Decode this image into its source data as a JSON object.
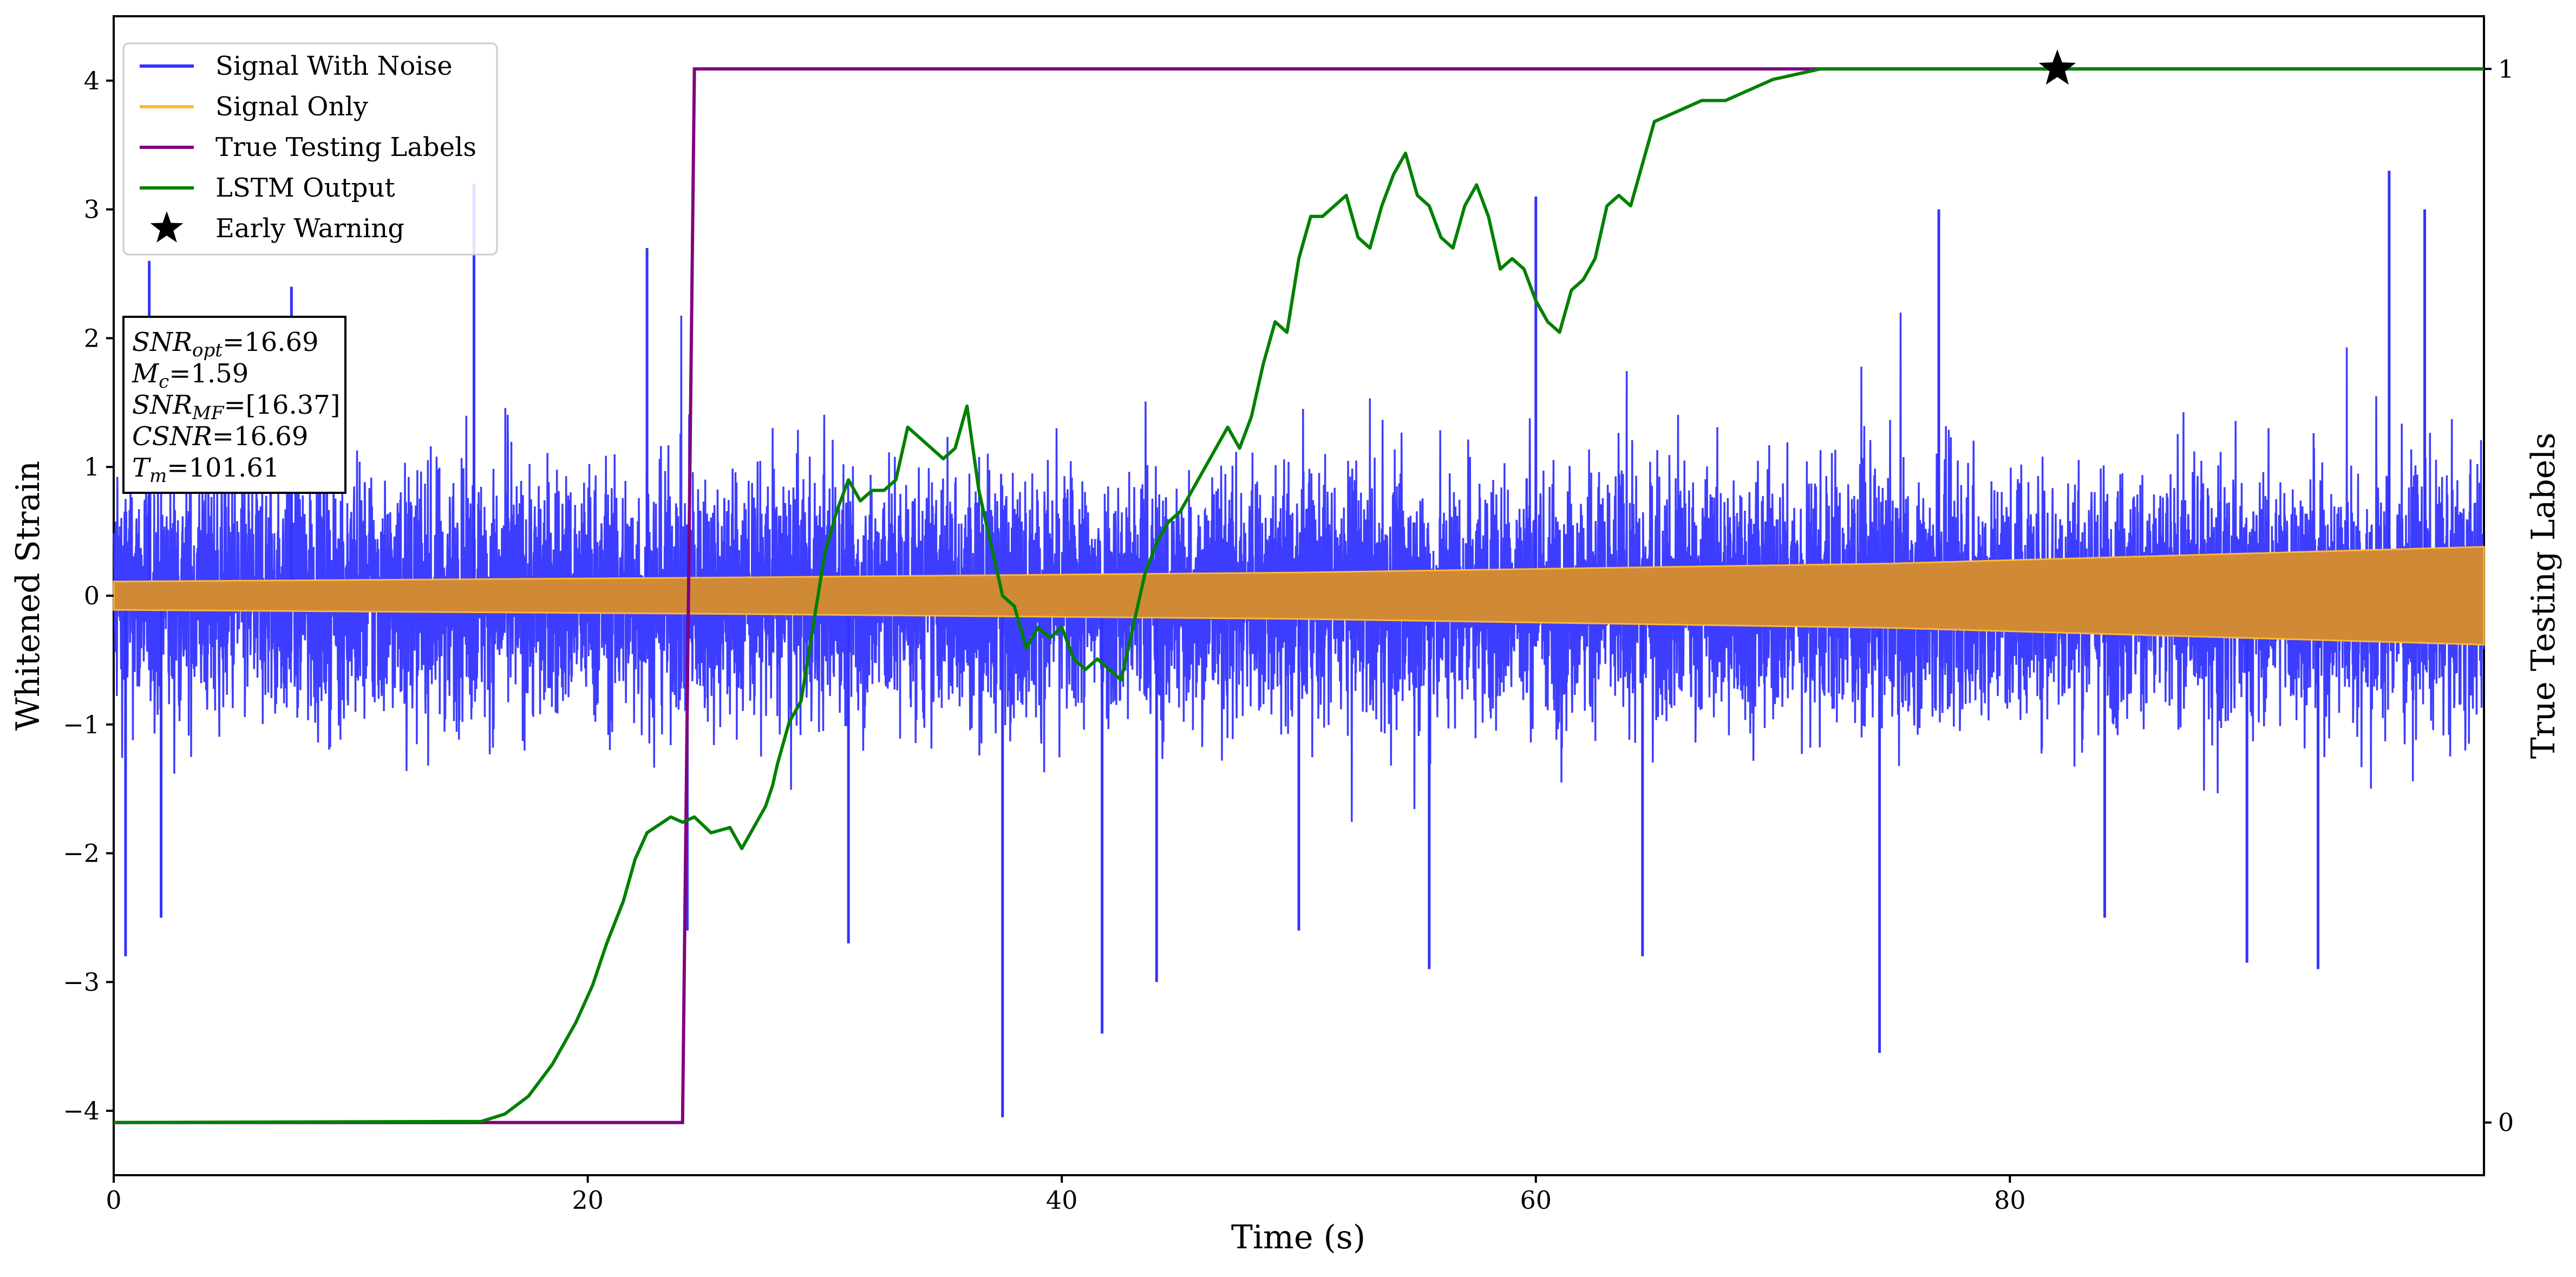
{
  "chart_data": {
    "type": "line",
    "xlabel": "Time (s)",
    "ylabel": "Whitened Strain",
    "ylabel_right": "True Testing Labels",
    "xlim": [
      0,
      100
    ],
    "ylim": [
      -4.5,
      4.5
    ],
    "ylim_right": [
      -0.05,
      1.05
    ],
    "x_ticks": [
      0,
      20,
      40,
      60,
      80
    ],
    "y_ticks": [
      -4,
      -3,
      -2,
      -1,
      0,
      1,
      2,
      3,
      4
    ],
    "y_ticks_right": [
      0,
      1
    ],
    "x_tick_labels": [
      "0",
      "20",
      "40",
      "60",
      "80"
    ],
    "y_tick_labels": [
      "−4",
      "−3",
      "−2",
      "−1",
      "0",
      "1",
      "2",
      "3",
      "4"
    ],
    "y_tick_labels_right": [
      "0",
      "1"
    ],
    "grid": false,
    "legend_placement": "top-left",
    "legend": [
      {
        "label": "Signal With Noise",
        "color": "#3333ff",
        "marker": "line"
      },
      {
        "label": "Signal Only",
        "color": "#ffb833",
        "marker": "line"
      },
      {
        "label": "True Testing Labels",
        "color": "#800080",
        "marker": "line"
      },
      {
        "label": "LSTM Output",
        "color": "#008000",
        "marker": "line"
      },
      {
        "label": "Early Warning",
        "color": "#000000",
        "marker": "star"
      }
    ],
    "annotation": [
      {
        "main": "SNR",
        "sub": "opt",
        "value": "=16.69"
      },
      {
        "main": "M",
        "sub": "c",
        "value": "=1.59"
      },
      {
        "main": "SNR",
        "sub": "MF",
        "value": "=[16.37]"
      },
      {
        "main": "CSNR",
        "sub": "",
        "value": "=16.69"
      },
      {
        "main": "T",
        "sub": "m",
        "value": "=101.61"
      }
    ],
    "series": [
      {
        "name": "Signal With Noise",
        "axis": "left",
        "color": "#3333ff",
        "description": "dense noisy strain, mostly within ±1.5 with spikes to about ±3",
        "noise_band": [
          -1.4,
          1.4
        ],
        "spikes": [
          {
            "x": 0.5,
            "y": -2.8
          },
          {
            "x": 1.5,
            "y": 2.6
          },
          {
            "x": 2.0,
            "y": -2.5
          },
          {
            "x": 7.5,
            "y": 2.4
          },
          {
            "x": 15.2,
            "y": 3.2
          },
          {
            "x": 22.5,
            "y": 2.7
          },
          {
            "x": 24.2,
            "y": -2.6
          },
          {
            "x": 31.0,
            "y": -2.7
          },
          {
            "x": 37.5,
            "y": -4.05
          },
          {
            "x": 41.7,
            "y": -3.4
          },
          {
            "x": 44.0,
            "y": -3.0
          },
          {
            "x": 50.0,
            "y": -2.6
          },
          {
            "x": 55.5,
            "y": -2.9
          },
          {
            "x": 60.0,
            "y": 3.1
          },
          {
            "x": 64.5,
            "y": -2.8
          },
          {
            "x": 74.5,
            "y": -3.55
          },
          {
            "x": 77.0,
            "y": 3.0
          },
          {
            "x": 84.0,
            "y": -2.5
          },
          {
            "x": 90.0,
            "y": -2.85
          },
          {
            "x": 93.0,
            "y": -2.9
          },
          {
            "x": 96.0,
            "y": 3.3
          },
          {
            "x": 97.5,
            "y": 3.0
          }
        ]
      },
      {
        "name": "Signal Only",
        "axis": "left",
        "color": "#ffb833",
        "description": "chirp envelope growing with time",
        "envelope": [
          [
            0,
            0.11
          ],
          [
            25,
            0.14
          ],
          [
            50,
            0.18
          ],
          [
            75,
            0.25
          ],
          [
            100,
            0.38
          ]
        ]
      },
      {
        "name": "True Testing Labels",
        "axis": "right",
        "color": "#800080",
        "x": [
          0,
          24.0,
          24.5,
          100
        ],
        "y": [
          0,
          0,
          1,
          1
        ]
      },
      {
        "name": "LSTM Output",
        "axis": "right",
        "color": "#008000",
        "x": [
          0,
          15.5,
          16.5,
          17.5,
          18.5,
          19.5,
          20.2,
          20.8,
          21.5,
          22.0,
          22.5,
          23.5,
          24.0,
          24.5,
          25.2,
          26.0,
          26.5,
          27.0,
          27.5,
          27.8,
          28.0,
          28.5,
          29.0,
          29.5,
          30.0,
          30.5,
          31.0,
          31.5,
          32.0,
          32.5,
          33.0,
          33.5,
          34.0,
          34.5,
          35.0,
          35.5,
          36.0,
          36.5,
          37.0,
          37.5,
          38.0,
          38.5,
          39.0,
          39.5,
          40.0,
          40.5,
          41.0,
          41.5,
          42.0,
          42.5,
          43.0,
          43.5,
          44.0,
          44.5,
          45.0,
          45.5,
          46.0,
          46.5,
          47.0,
          47.5,
          48.0,
          48.5,
          49.0,
          49.5,
          50.0,
          50.5,
          51.0,
          51.5,
          52.0,
          52.5,
          53.0,
          53.5,
          54.0,
          54.5,
          55.0,
          55.5,
          56.0,
          56.5,
          57.0,
          57.5,
          58.0,
          58.5,
          59.0,
          59.5,
          60.0,
          60.5,
          61.0,
          61.5,
          62.0,
          62.5,
          63.0,
          63.5,
          64.0,
          64.5,
          65.0,
          66.0,
          67.0,
          68.0,
          69.0,
          70.0,
          72.0,
          75.0,
          80.0,
          85.0,
          90.0,
          95.0,
          100.0
        ],
        "y": [
          0,
          0.001,
          0.008,
          0.025,
          0.055,
          0.095,
          0.13,
          0.17,
          0.21,
          0.25,
          0.275,
          0.29,
          0.285,
          0.29,
          0.275,
          0.28,
          0.26,
          0.28,
          0.3,
          0.32,
          0.34,
          0.38,
          0.4,
          0.47,
          0.54,
          0.58,
          0.61,
          0.59,
          0.6,
          0.6,
          0.61,
          0.66,
          0.65,
          0.64,
          0.63,
          0.64,
          0.68,
          0.6,
          0.55,
          0.5,
          0.49,
          0.45,
          0.47,
          0.46,
          0.47,
          0.44,
          0.43,
          0.44,
          0.43,
          0.42,
          0.47,
          0.52,
          0.55,
          0.57,
          0.58,
          0.6,
          0.62,
          0.64,
          0.66,
          0.64,
          0.67,
          0.72,
          0.76,
          0.75,
          0.82,
          0.86,
          0.86,
          0.87,
          0.88,
          0.84,
          0.83,
          0.87,
          0.9,
          0.92,
          0.88,
          0.87,
          0.84,
          0.83,
          0.87,
          0.89,
          0.86,
          0.81,
          0.82,
          0.81,
          0.78,
          0.76,
          0.75,
          0.79,
          0.8,
          0.82,
          0.87,
          0.88,
          0.87,
          0.91,
          0.95,
          0.96,
          0.97,
          0.97,
          0.98,
          0.99,
          1.0,
          1.0,
          1.0,
          1.0,
          1.0,
          1.0,
          1.0
        ]
      },
      {
        "name": "Early Warning",
        "axis": "right",
        "color": "#000000",
        "marker": "star",
        "x": [
          82.0
        ],
        "y": [
          1.0
        ]
      }
    ]
  }
}
